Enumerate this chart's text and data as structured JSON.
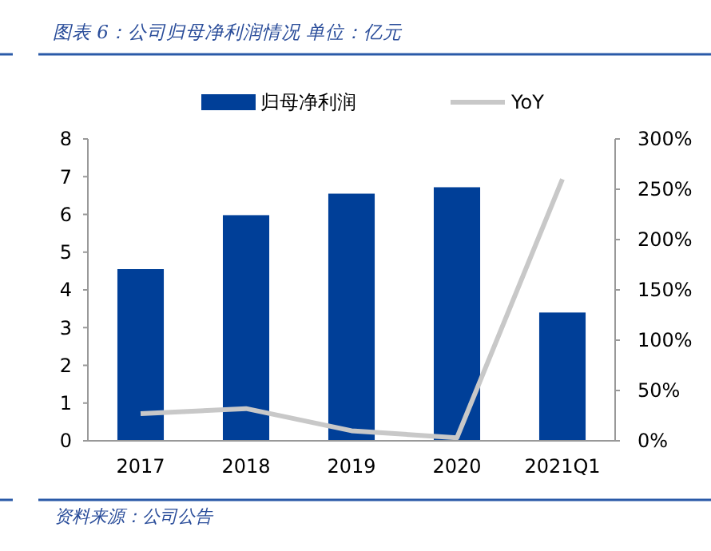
{
  "chart_data": {
    "type": "bar",
    "title": "图表 6：公司归母净利润情况    单位：亿元",
    "annotations": [
      "资料来源：公司公告"
    ],
    "categories": [
      "2017",
      "2018",
      "2019",
      "2020",
      "2021Q1"
    ],
    "series": [
      {
        "name": "归母净利润",
        "color": "#003f98",
        "values": [
          4.55,
          5.98,
          6.55,
          6.72,
          3.4
        ]
      },
      {
        "name": "YoY",
        "type": "line",
        "axis": "y2",
        "color": "#c8c8c8",
        "values": [
          27,
          32,
          10,
          3,
          260
        ]
      }
    ],
    "ylim": [
      0,
      8
    ],
    "yticks": [
      0,
      1,
      2,
      3,
      4,
      5,
      6,
      7,
      8
    ],
    "y2lim": [
      0,
      300
    ],
    "y2ticks": [
      {
        "value": 0,
        "label": "0%"
      },
      {
        "value": 50,
        "label": "50%"
      },
      {
        "value": 100,
        "label": "100%"
      },
      {
        "value": 150,
        "label": "150%"
      },
      {
        "value": 200,
        "label": "200%"
      },
      {
        "value": 250,
        "label": "250%"
      },
      {
        "value": 300,
        "label": "300%"
      }
    ],
    "legend": "top",
    "grid": false
  }
}
